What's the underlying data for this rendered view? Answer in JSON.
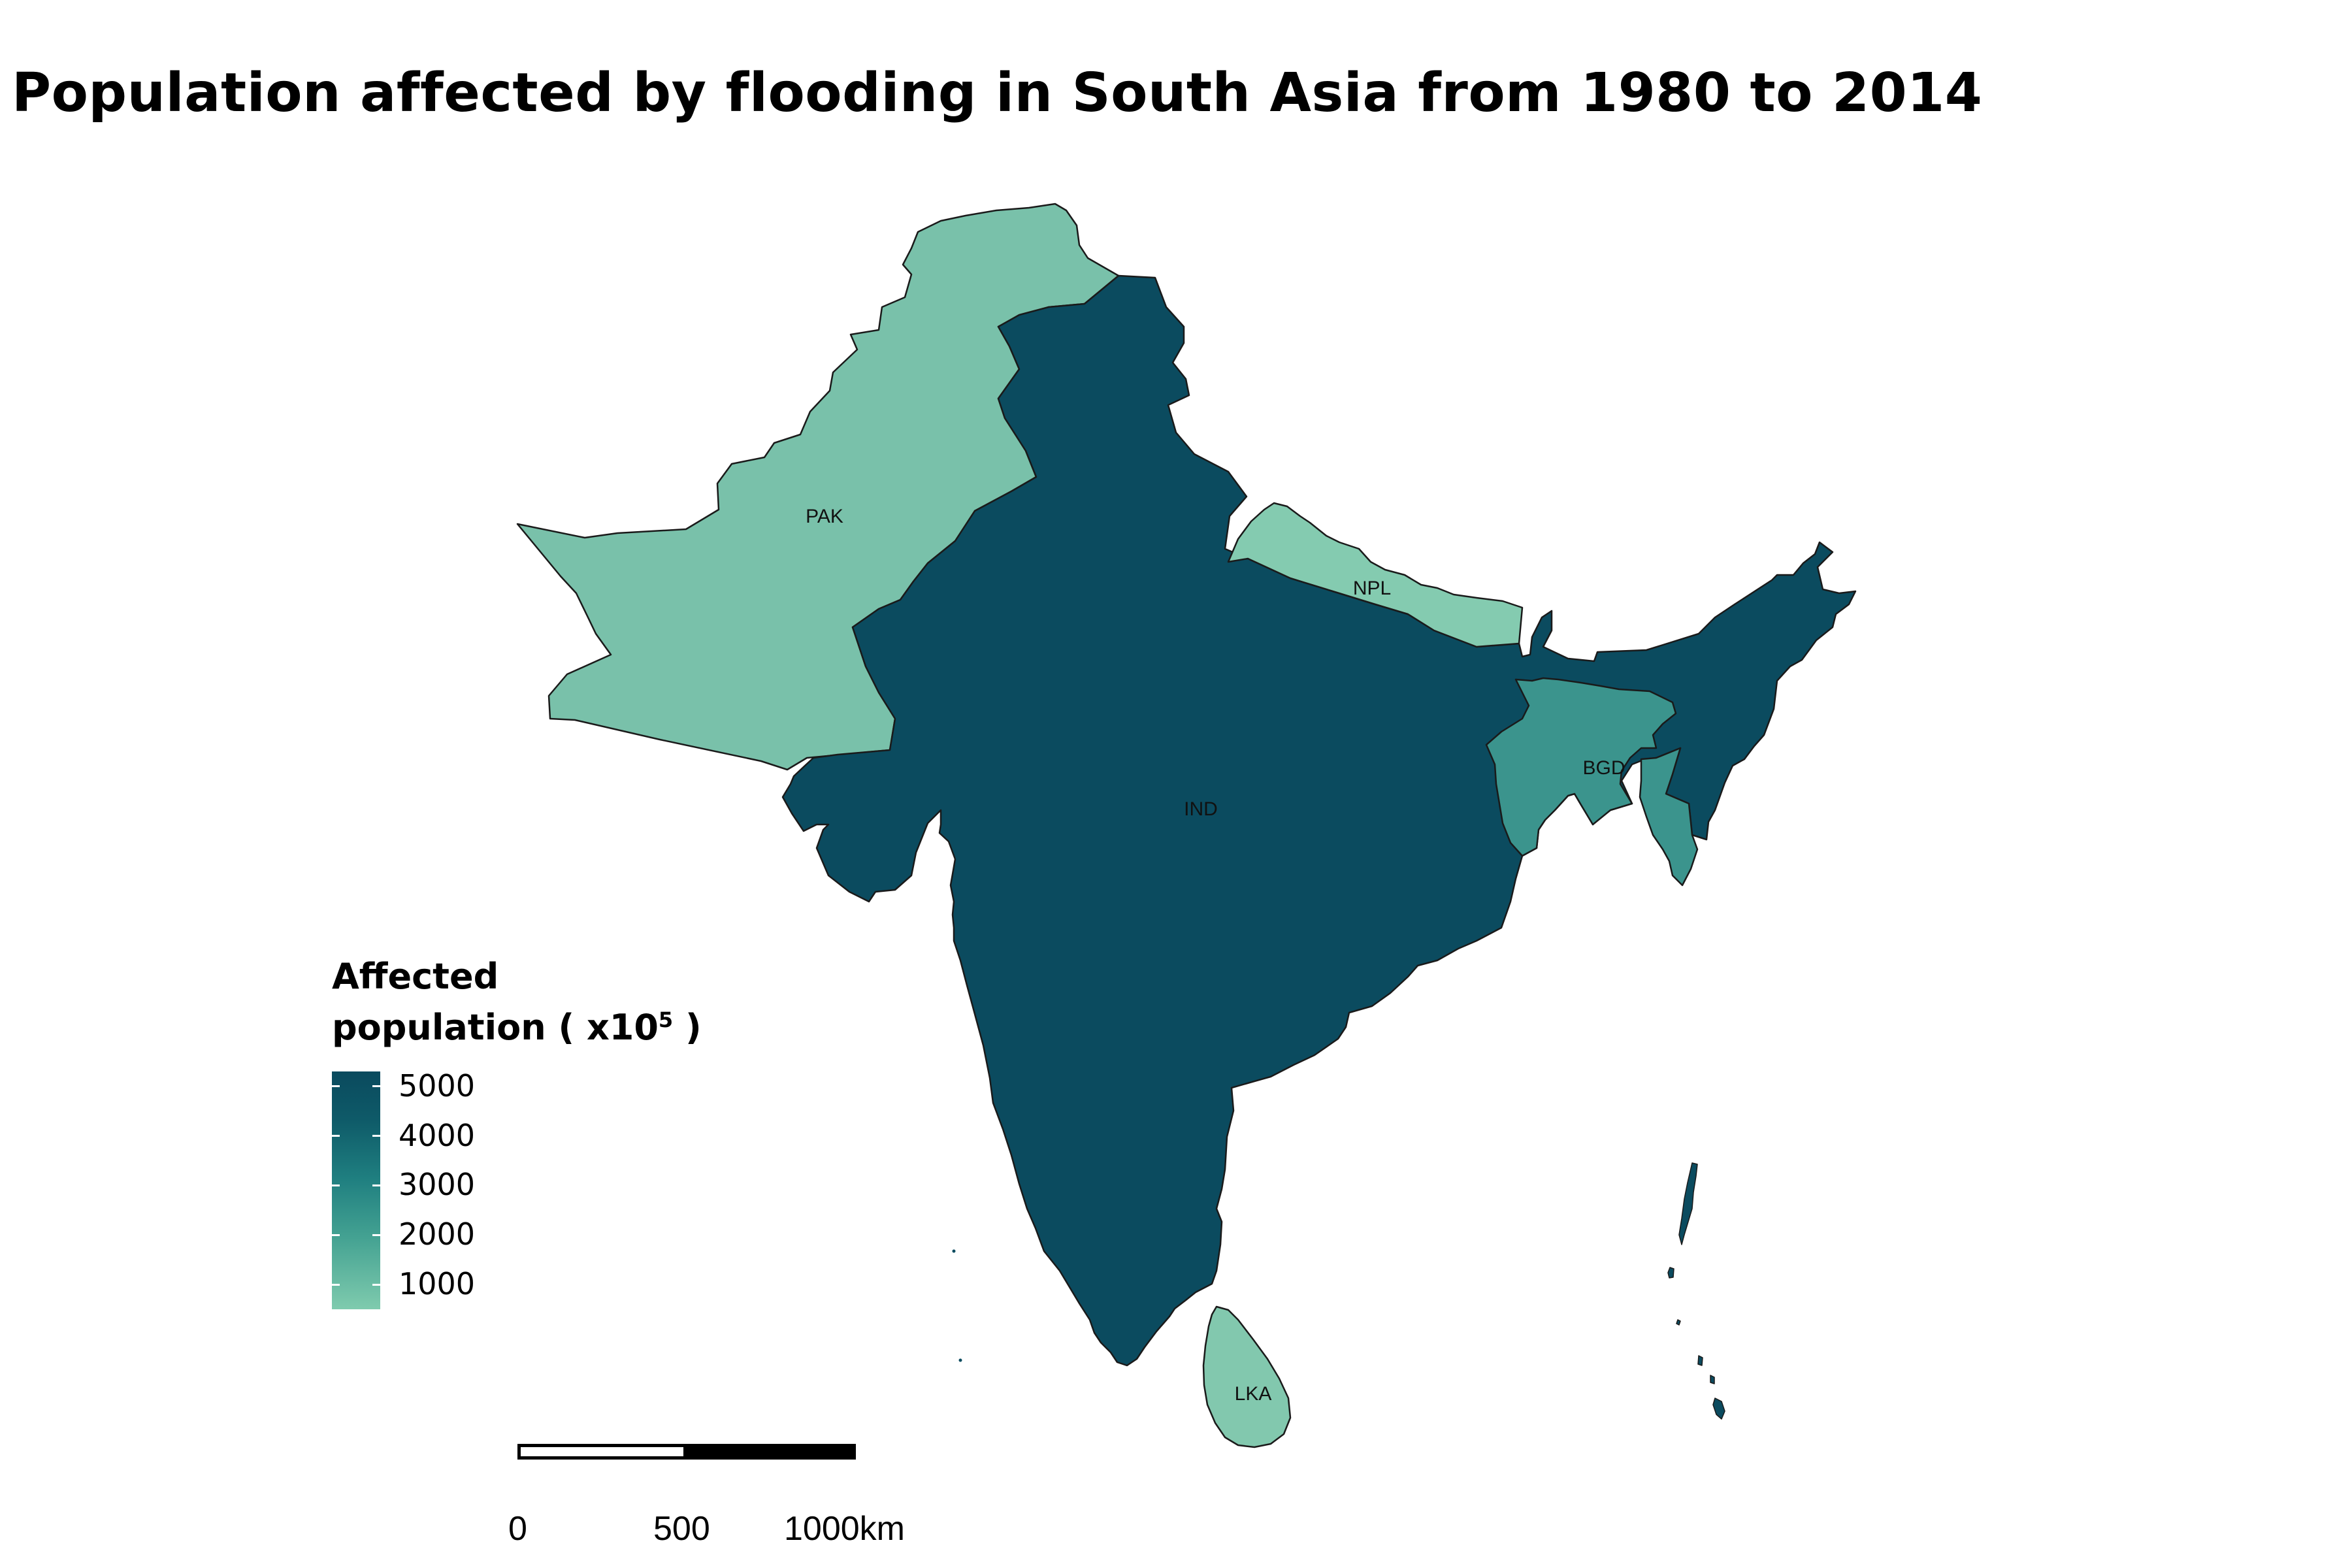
{
  "title": "Population affected by flooding in South Asia from 1980 to 2014",
  "legend": {
    "title_line1": "Affected",
    "title_line2_prefix": "population ( x10",
    "title_exp": "5",
    "title_suffix": " )",
    "ticks": [
      "5000",
      "4000",
      "3000",
      "2000",
      "1000"
    ],
    "tick_values": [
      5000,
      4000,
      3000,
      2000,
      1000
    ],
    "range": [
      500,
      5300
    ],
    "colors": {
      "low": "#7fcbae",
      "high": "#0a4a5e"
    }
  },
  "countries": [
    {
      "code": "PAK",
      "label": "PAK",
      "color": "#79c1aa"
    },
    {
      "code": "IND",
      "label": "IND",
      "color": "#0b4b5f"
    },
    {
      "code": "NPL",
      "label": "NPL",
      "color": "#84cbb0"
    },
    {
      "code": "BGD",
      "label": "BGD",
      "color": "#3b948d"
    },
    {
      "code": "LKA",
      "label": "LKA",
      "color": "#82c8ae"
    }
  ],
  "scale_bar": {
    "labels": [
      "0",
      "500",
      "1000km"
    ]
  }
}
